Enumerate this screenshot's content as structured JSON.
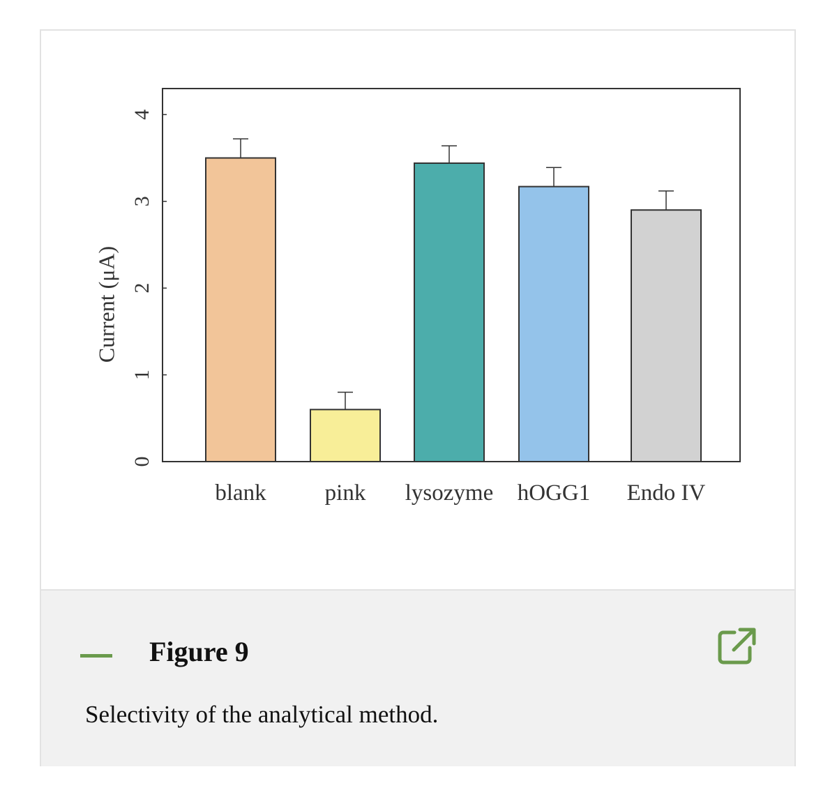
{
  "chart_data": {
    "type": "bar",
    "categories": [
      "blank",
      "pink",
      "lysozyme",
      "hOGG1",
      "Endo IV"
    ],
    "values": [
      3.5,
      0.6,
      3.44,
      3.17,
      2.9
    ],
    "errors": [
      0.22,
      0.2,
      0.2,
      0.22,
      0.22
    ],
    "colors": [
      "#f2c599",
      "#f8ee98",
      "#4cadab",
      "#94c3ea",
      "#d2d2d2"
    ],
    "ylabel": "Current (μA)",
    "xlabel": "",
    "ylim": [
      0,
      4.3
    ],
    "yticks": [
      0,
      1,
      2,
      3,
      4
    ]
  },
  "figure": {
    "title": "Figure 9",
    "caption": "Selectivity of the analytical method.",
    "open_icon": "open-in-new-window-icon",
    "accent_color": "#6a9a4c"
  }
}
